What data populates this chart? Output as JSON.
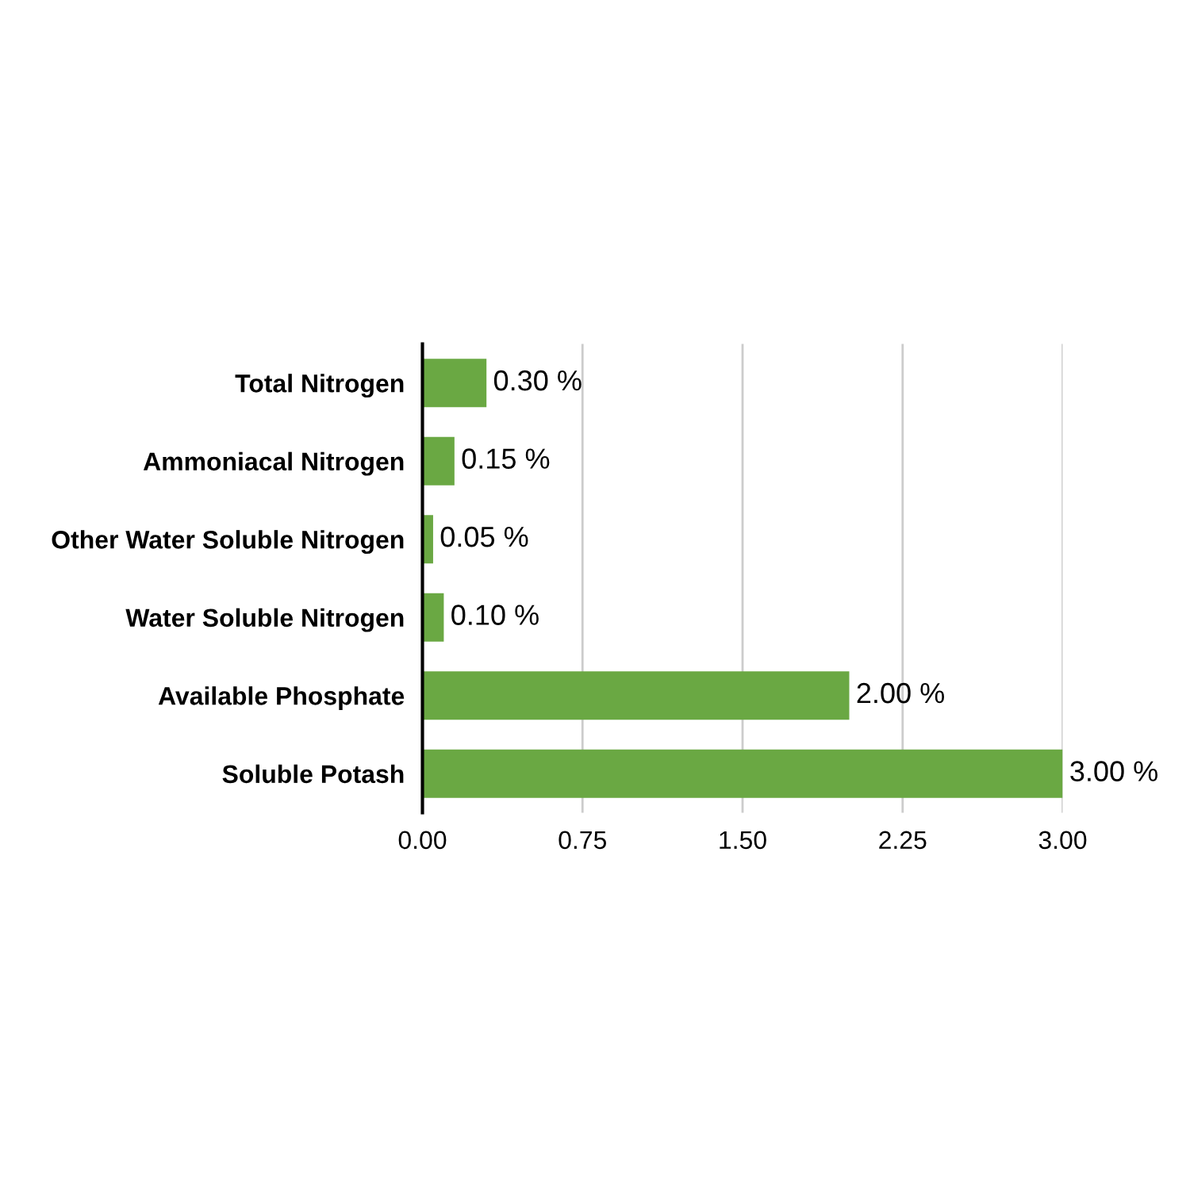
{
  "chart_data": {
    "type": "bar",
    "orientation": "horizontal",
    "categories": [
      "Total Nitrogen",
      "Ammoniacal Nitrogen",
      "Other Water Soluble Nitrogen",
      "Water Soluble Nitrogen",
      "Available Phosphate",
      "Soluble Potash"
    ],
    "values": [
      0.3,
      0.15,
      0.05,
      0.1,
      2.0,
      3.0
    ],
    "value_labels": [
      "0.30 %",
      "0.15 %",
      "0.05 %",
      "0.10 %",
      "2.00 %",
      "3.00 %"
    ],
    "color": "#6aa843",
    "xlim": [
      0,
      3.0
    ],
    "xticks": [
      {
        "value": 0,
        "label": "0.00"
      },
      {
        "value": 0.75,
        "label": "0.75"
      },
      {
        "value": 1.5,
        "label": "1.50"
      },
      {
        "value": 2.25,
        "label": "2.25"
      },
      {
        "value": 3.0,
        "label": "3.00"
      }
    ],
    "grid": "x"
  }
}
